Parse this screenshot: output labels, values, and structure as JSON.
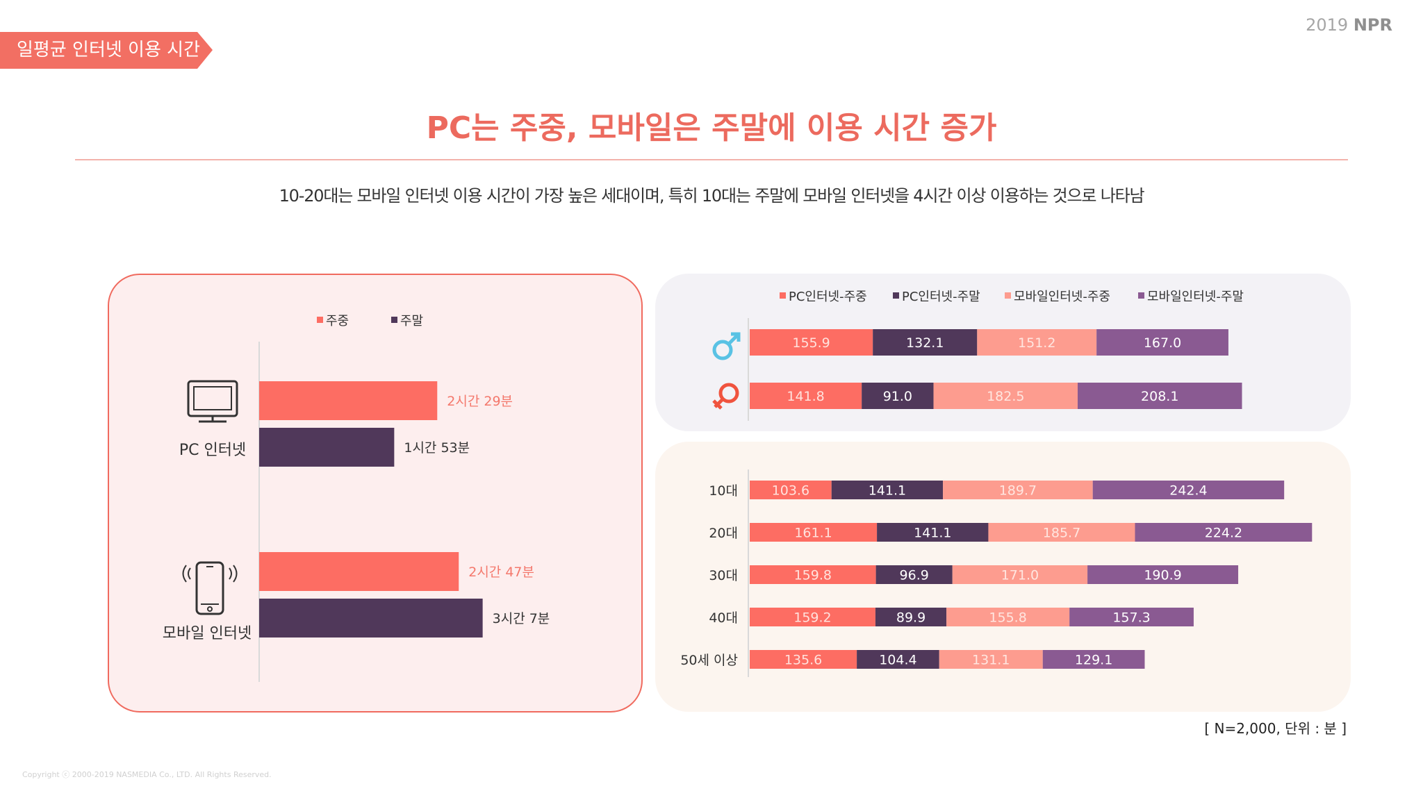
{
  "header": {
    "tag_label": "일평균 인터넷 이용 시간",
    "brand_year": "2019",
    "brand_name": "NPR",
    "headline": "PC는 주중, 모바일은 주말에 이용 시간 증가",
    "subline": "10-20대는 모바일 인터넷 이용 시간이 가장 높은 세대이며, 특히 10대는 주말에 모바일 인터넷을 4시간 이상 이용하는 것으로 나타남"
  },
  "footer": {
    "note": "[ N=2,000, 단위 : 분 ]",
    "copyright": "Copyright ⓒ 2000-2019 NASMEDIA Co., LTD. All Rights Reserved."
  },
  "colors": {
    "pc_weekday": "#fd6d63",
    "pc_weekend": "#50385a",
    "mobile_weekday": "#fd9c8f",
    "mobile_weekend": "#8a5a92",
    "label_coral": "#f4786c",
    "male_icon": "#59c2e4",
    "female_icon": "#f0533e"
  },
  "chart_data": [
    {
      "type": "bar",
      "orientation": "horizontal",
      "categories": [
        "PC 인터넷",
        "모바일 인터넷"
      ],
      "series": [
        {
          "name": "주중",
          "values": [
            149,
            167
          ],
          "labels": [
            "2시간 29분",
            "2시간 47분"
          ]
        },
        {
          "name": "주말",
          "values": [
            113,
            187
          ],
          "labels": [
            "1시간 53분",
            "3시간 7분"
          ]
        }
      ],
      "legend": "top",
      "icons": [
        "monitor-icon",
        "smartphone-icon"
      ]
    },
    {
      "type": "bar",
      "orientation": "horizontal",
      "stacked": true,
      "categories": [
        "남성",
        "여성"
      ],
      "category_icons": [
        "male-icon",
        "female-icon"
      ],
      "series": [
        {
          "name": "PC인터넷-주중",
          "values": [
            155.9,
            141.8
          ]
        },
        {
          "name": "PC인터넷-주말",
          "values": [
            132.1,
            91.0
          ]
        },
        {
          "name": "모바일인터넷-주중",
          "values": [
            151.2,
            182.5
          ]
        },
        {
          "name": "모바일인터넷-주말",
          "values": [
            167.0,
            208.1
          ]
        }
      ],
      "legend": "top"
    },
    {
      "type": "bar",
      "orientation": "horizontal",
      "stacked": true,
      "categories": [
        "10대",
        "20대",
        "30대",
        "40대",
        "50세 이상"
      ],
      "series": [
        {
          "name": "PC인터넷-주중",
          "values": [
            103.6,
            161.1,
            159.8,
            159.2,
            135.6
          ]
        },
        {
          "name": "PC인터넷-주말",
          "values": [
            141.1,
            141.1,
            96.9,
            89.9,
            104.4
          ]
        },
        {
          "name": "모바일인터넷-주중",
          "values": [
            189.7,
            185.7,
            171.0,
            155.8,
            131.1
          ]
        },
        {
          "name": "모바일인터넷-주말",
          "values": [
            242.4,
            224.2,
            190.9,
            157.3,
            129.1
          ]
        }
      ]
    }
  ]
}
